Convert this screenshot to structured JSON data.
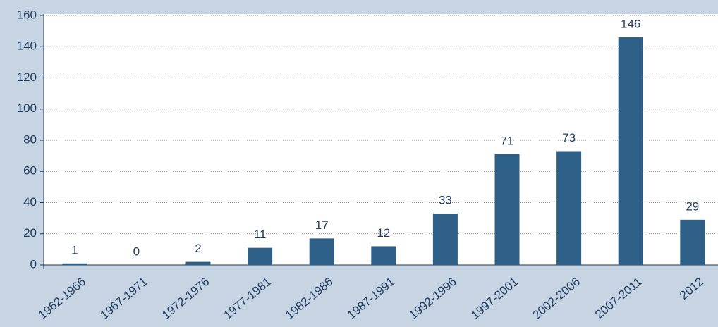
{
  "chart_data": {
    "type": "bar",
    "categories": [
      "1962-1966",
      "1967-1971",
      "1972-1976",
      "1977-1981",
      "1982-1986",
      "1987-1991",
      "1992-1996",
      "1997-2001",
      "2002-2006",
      "2007-2011",
      "2012"
    ],
    "values": [
      1,
      0,
      2,
      11,
      17,
      12,
      33,
      71,
      73,
      146,
      29
    ],
    "color": "#2e5f87",
    "ylim": [
      0,
      160
    ],
    "yticks": [
      0,
      20,
      40,
      60,
      80,
      100,
      120,
      140,
      160
    ],
    "grid": true
  }
}
